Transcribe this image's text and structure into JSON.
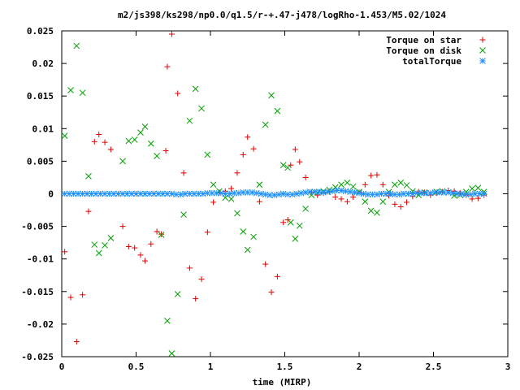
{
  "chart_data": {
    "type": "scatter",
    "title": "m2/js398/ks298/np0.0/q1.5/r-+.47-j478/logRho-1.453/M5.02/1024",
    "xlabel": "time (MIRP)",
    "ylabel": "",
    "xlim": [
      0,
      3
    ],
    "ylim": [
      -0.025,
      0.025
    ],
    "x_ticks": [
      "0",
      "0.5",
      "1",
      "1.5",
      "2",
      "2.5",
      "3"
    ],
    "y_ticks": [
      "0.025",
      "0.02",
      "0.015",
      "0.01",
      "0.005",
      "0",
      "-0.005",
      "-0.01",
      "-0.015",
      "-0.02",
      "-0.025"
    ],
    "legend_position": "top-right",
    "grid": false,
    "series": [
      {
        "name": "Torque on star",
        "marker": "plus",
        "color": "#e00000",
        "points": [
          [
            0.02,
            -0.0089
          ],
          [
            0.06,
            -0.0159
          ],
          [
            0.1,
            -0.0227
          ],
          [
            0.14,
            -0.0155
          ],
          [
            0.18,
            -0.0027
          ],
          [
            0.22,
            0.008
          ],
          [
            0.25,
            0.0091
          ],
          [
            0.29,
            0.0079
          ],
          [
            0.33,
            0.0068
          ],
          [
            0.41,
            -0.005
          ],
          [
            0.45,
            -0.0081
          ],
          [
            0.49,
            -0.0083
          ],
          [
            0.53,
            -0.0094
          ],
          [
            0.56,
            -0.0103
          ],
          [
            0.6,
            -0.0077
          ],
          [
            0.64,
            -0.0058
          ],
          [
            0.67,
            -0.0062
          ],
          [
            0.7,
            0.0066
          ],
          [
            0.71,
            0.0195
          ],
          [
            0.74,
            0.0245
          ],
          [
            0.78,
            0.0154
          ],
          [
            0.82,
            0.0032
          ],
          [
            0.86,
            -0.0114
          ],
          [
            0.9,
            -0.0161
          ],
          [
            0.94,
            -0.0131
          ],
          [
            0.98,
            -0.0059
          ],
          [
            1.02,
            -0.0013
          ],
          [
            1.06,
            0.0002
          ],
          [
            1.1,
            0.0004
          ],
          [
            1.14,
            0.0008
          ],
          [
            1.18,
            0.0032
          ],
          [
            1.22,
            0.006
          ],
          [
            1.25,
            0.0087
          ],
          [
            1.29,
            0.0069
          ],
          [
            1.33,
            -0.0012
          ],
          [
            1.37,
            -0.0108
          ],
          [
            1.41,
            -0.0151
          ],
          [
            1.45,
            -0.0127
          ],
          [
            1.49,
            -0.0044
          ],
          [
            1.52,
            -0.004
          ],
          [
            1.54,
            0.0044
          ],
          [
            1.57,
            0.0068
          ],
          [
            1.6,
            0.0049
          ],
          [
            1.64,
            0.0025
          ],
          [
            1.68,
            0.0002
          ],
          [
            1.72,
            -0.0002
          ],
          [
            1.76,
            0.0001
          ],
          [
            1.8,
            0.0003
          ],
          [
            1.84,
            -0.0005
          ],
          [
            1.88,
            -0.0008
          ],
          [
            1.92,
            -0.0012
          ],
          [
            1.96,
            -0.0005
          ],
          [
            2.0,
            0.0002
          ],
          [
            2.04,
            0.0014
          ],
          [
            2.08,
            0.0028
          ],
          [
            2.12,
            0.0029
          ],
          [
            2.16,
            0.0014
          ],
          [
            2.2,
            -0.0003
          ],
          [
            2.24,
            -0.0016
          ],
          [
            2.28,
            -0.002
          ],
          [
            2.32,
            -0.0013
          ],
          [
            2.36,
            -0.0004
          ],
          [
            2.4,
            0.0003
          ],
          [
            2.44,
            0.0002
          ],
          [
            2.48,
            -0.0002
          ],
          [
            2.52,
            0.0001
          ],
          [
            2.56,
            0.0003
          ],
          [
            2.6,
            0.0005
          ],
          [
            2.64,
            0.0004
          ],
          [
            2.68,
            0.0001
          ],
          [
            2.72,
            -0.0002
          ],
          [
            2.76,
            -0.0008
          ],
          [
            2.8,
            -0.0007
          ],
          [
            2.84,
            -0.0002
          ]
        ]
      },
      {
        "name": "Torque on disk",
        "marker": "cross",
        "color": "#00a000",
        "points": [
          [
            0.02,
            0.0089
          ],
          [
            0.06,
            0.0159
          ],
          [
            0.1,
            0.0227
          ],
          [
            0.14,
            0.0155
          ],
          [
            0.18,
            0.0027
          ],
          [
            0.22,
            -0.0078
          ],
          [
            0.25,
            -0.0091
          ],
          [
            0.29,
            -0.0079
          ],
          [
            0.33,
            -0.0068
          ],
          [
            0.41,
            0.005
          ],
          [
            0.45,
            0.0081
          ],
          [
            0.49,
            0.0083
          ],
          [
            0.53,
            0.0094
          ],
          [
            0.56,
            0.0103
          ],
          [
            0.6,
            0.0077
          ],
          [
            0.64,
            0.0058
          ],
          [
            0.67,
            -0.0063
          ],
          [
            0.71,
            -0.0195
          ],
          [
            0.74,
            -0.0245
          ],
          [
            0.78,
            -0.0154
          ],
          [
            0.82,
            -0.0032
          ],
          [
            0.86,
            0.0112
          ],
          [
            0.9,
            0.0161
          ],
          [
            0.94,
            0.0131
          ],
          [
            0.98,
            0.006
          ],
          [
            1.02,
            0.0014
          ],
          [
            1.06,
            0.0004
          ],
          [
            1.1,
            -0.0006
          ],
          [
            1.14,
            -0.0008
          ],
          [
            1.18,
            -0.003
          ],
          [
            1.22,
            -0.0058
          ],
          [
            1.25,
            -0.0086
          ],
          [
            1.29,
            -0.0066
          ],
          [
            1.33,
            0.0014
          ],
          [
            1.37,
            0.0106
          ],
          [
            1.41,
            0.0151
          ],
          [
            1.45,
            0.0127
          ],
          [
            1.49,
            0.0044
          ],
          [
            1.52,
            0.004
          ],
          [
            1.54,
            -0.0044
          ],
          [
            1.57,
            -0.0069
          ],
          [
            1.6,
            -0.0049
          ],
          [
            1.64,
            -0.0023
          ],
          [
            1.68,
            -0.0002
          ],
          [
            1.72,
            0.0002
          ],
          [
            1.76,
            0.0004
          ],
          [
            1.8,
            0.0006
          ],
          [
            1.84,
            0.001
          ],
          [
            1.88,
            0.0014
          ],
          [
            1.92,
            0.0017
          ],
          [
            1.96,
            0.0011
          ],
          [
            2.0,
            0.0003
          ],
          [
            2.04,
            -0.0012
          ],
          [
            2.08,
            -0.0026
          ],
          [
            2.12,
            -0.0029
          ],
          [
            2.16,
            -0.0012
          ],
          [
            2.2,
            0.0003
          ],
          [
            2.24,
            0.0014
          ],
          [
            2.28,
            0.0017
          ],
          [
            2.32,
            0.0013
          ],
          [
            2.36,
            0.0004
          ],
          [
            2.4,
            -0.0002
          ],
          [
            2.44,
            0.0002
          ],
          [
            2.48,
            0.0001
          ],
          [
            2.52,
            0.0003
          ],
          [
            2.56,
            0.0004
          ],
          [
            2.6,
            0.0002
          ],
          [
            2.64,
            -0.0003
          ],
          [
            2.68,
            -0.0002
          ],
          [
            2.72,
            0.0003
          ],
          [
            2.76,
            0.0008
          ],
          [
            2.8,
            0.0009
          ],
          [
            2.84,
            0.0003
          ]
        ]
      },
      {
        "name": "totalTorque",
        "marker": "star",
        "color": "#1e90ff",
        "points": [
          [
            0.02,
            0.0
          ],
          [
            0.05,
            0.0
          ],
          [
            0.08,
            0.0
          ],
          [
            0.11,
            0.0
          ],
          [
            0.14,
            0.0
          ],
          [
            0.17,
            0.0
          ],
          [
            0.2,
            0.0
          ],
          [
            0.23,
            0.0
          ],
          [
            0.26,
            0.0
          ],
          [
            0.29,
            0.0
          ],
          [
            0.32,
            0.0
          ],
          [
            0.35,
            0.0
          ],
          [
            0.38,
            0.0
          ],
          [
            0.41,
            0.0
          ],
          [
            0.44,
            0.0
          ],
          [
            0.47,
            0.0
          ],
          [
            0.5,
            0.0
          ],
          [
            0.53,
            0.0
          ],
          [
            0.56,
            0.0
          ],
          [
            0.59,
            0.0
          ],
          [
            0.62,
            0.0
          ],
          [
            0.65,
            0.0
          ],
          [
            0.68,
            0.0
          ],
          [
            0.71,
            0.0
          ],
          [
            0.74,
            0.0
          ],
          [
            0.77,
            -0.0001
          ],
          [
            0.8,
            -0.0001
          ],
          [
            0.83,
            0.0
          ],
          [
            0.86,
            0.0
          ],
          [
            0.89,
            0.0
          ],
          [
            0.92,
            0.0
          ],
          [
            0.95,
            0.0
          ],
          [
            0.98,
            0.0001
          ],
          [
            1.01,
            0.0001
          ],
          [
            1.04,
            0.0001
          ],
          [
            1.07,
            0.0001
          ],
          [
            1.1,
            0.0
          ],
          [
            1.13,
            0.0
          ],
          [
            1.16,
            0.0001
          ],
          [
            1.19,
            0.0001
          ],
          [
            1.22,
            0.0002
          ],
          [
            1.25,
            0.0002
          ],
          [
            1.28,
            0.0002
          ],
          [
            1.31,
            0.0001
          ],
          [
            1.34,
            0.0
          ],
          [
            1.37,
            -0.0001
          ],
          [
            1.4,
            -0.0002
          ],
          [
            1.43,
            -0.0002
          ],
          [
            1.46,
            -0.0001
          ],
          [
            1.49,
            0.0
          ],
          [
            1.52,
            -0.0001
          ],
          [
            1.55,
            -0.0001
          ],
          [
            1.58,
            0.0
          ],
          [
            1.61,
            0.0001
          ],
          [
            1.64,
            0.0002
          ],
          [
            1.67,
            0.0003
          ],
          [
            1.7,
            0.0003
          ],
          [
            1.73,
            0.0003
          ],
          [
            1.76,
            0.0002
          ],
          [
            1.79,
            0.0003
          ],
          [
            1.82,
            0.0004
          ],
          [
            1.85,
            0.0005
          ],
          [
            1.88,
            0.0005
          ],
          [
            1.91,
            0.0004
          ],
          [
            1.94,
            0.0003
          ],
          [
            1.97,
            0.0002
          ],
          [
            2.0,
            0.0001
          ],
          [
            2.03,
            0.0
          ],
          [
            2.06,
            -0.0001
          ],
          [
            2.09,
            -0.0001
          ],
          [
            2.12,
            -0.0001
          ],
          [
            2.15,
            0.0
          ],
          [
            2.18,
            0.0
          ],
          [
            2.21,
            0.0
          ],
          [
            2.24,
            -0.0001
          ],
          [
            2.27,
            -0.0001
          ],
          [
            2.3,
            0.0
          ],
          [
            2.33,
            0.0
          ],
          [
            2.36,
            0.0
          ],
          [
            2.39,
            0.0001
          ],
          [
            2.42,
            0.0001
          ],
          [
            2.45,
            0.0001
          ],
          [
            2.48,
            0.0001
          ],
          [
            2.51,
            0.0002
          ],
          [
            2.54,
            0.0002
          ],
          [
            2.57,
            0.0002
          ],
          [
            2.6,
            0.0002
          ],
          [
            2.63,
            0.0001
          ],
          [
            2.66,
            0.0
          ],
          [
            2.69,
            0.0
          ],
          [
            2.72,
            -0.0001
          ],
          [
            2.75,
            -0.0001
          ],
          [
            2.78,
            0.0
          ],
          [
            2.81,
            0.0
          ],
          [
            2.84,
            0.0
          ]
        ]
      }
    ]
  }
}
